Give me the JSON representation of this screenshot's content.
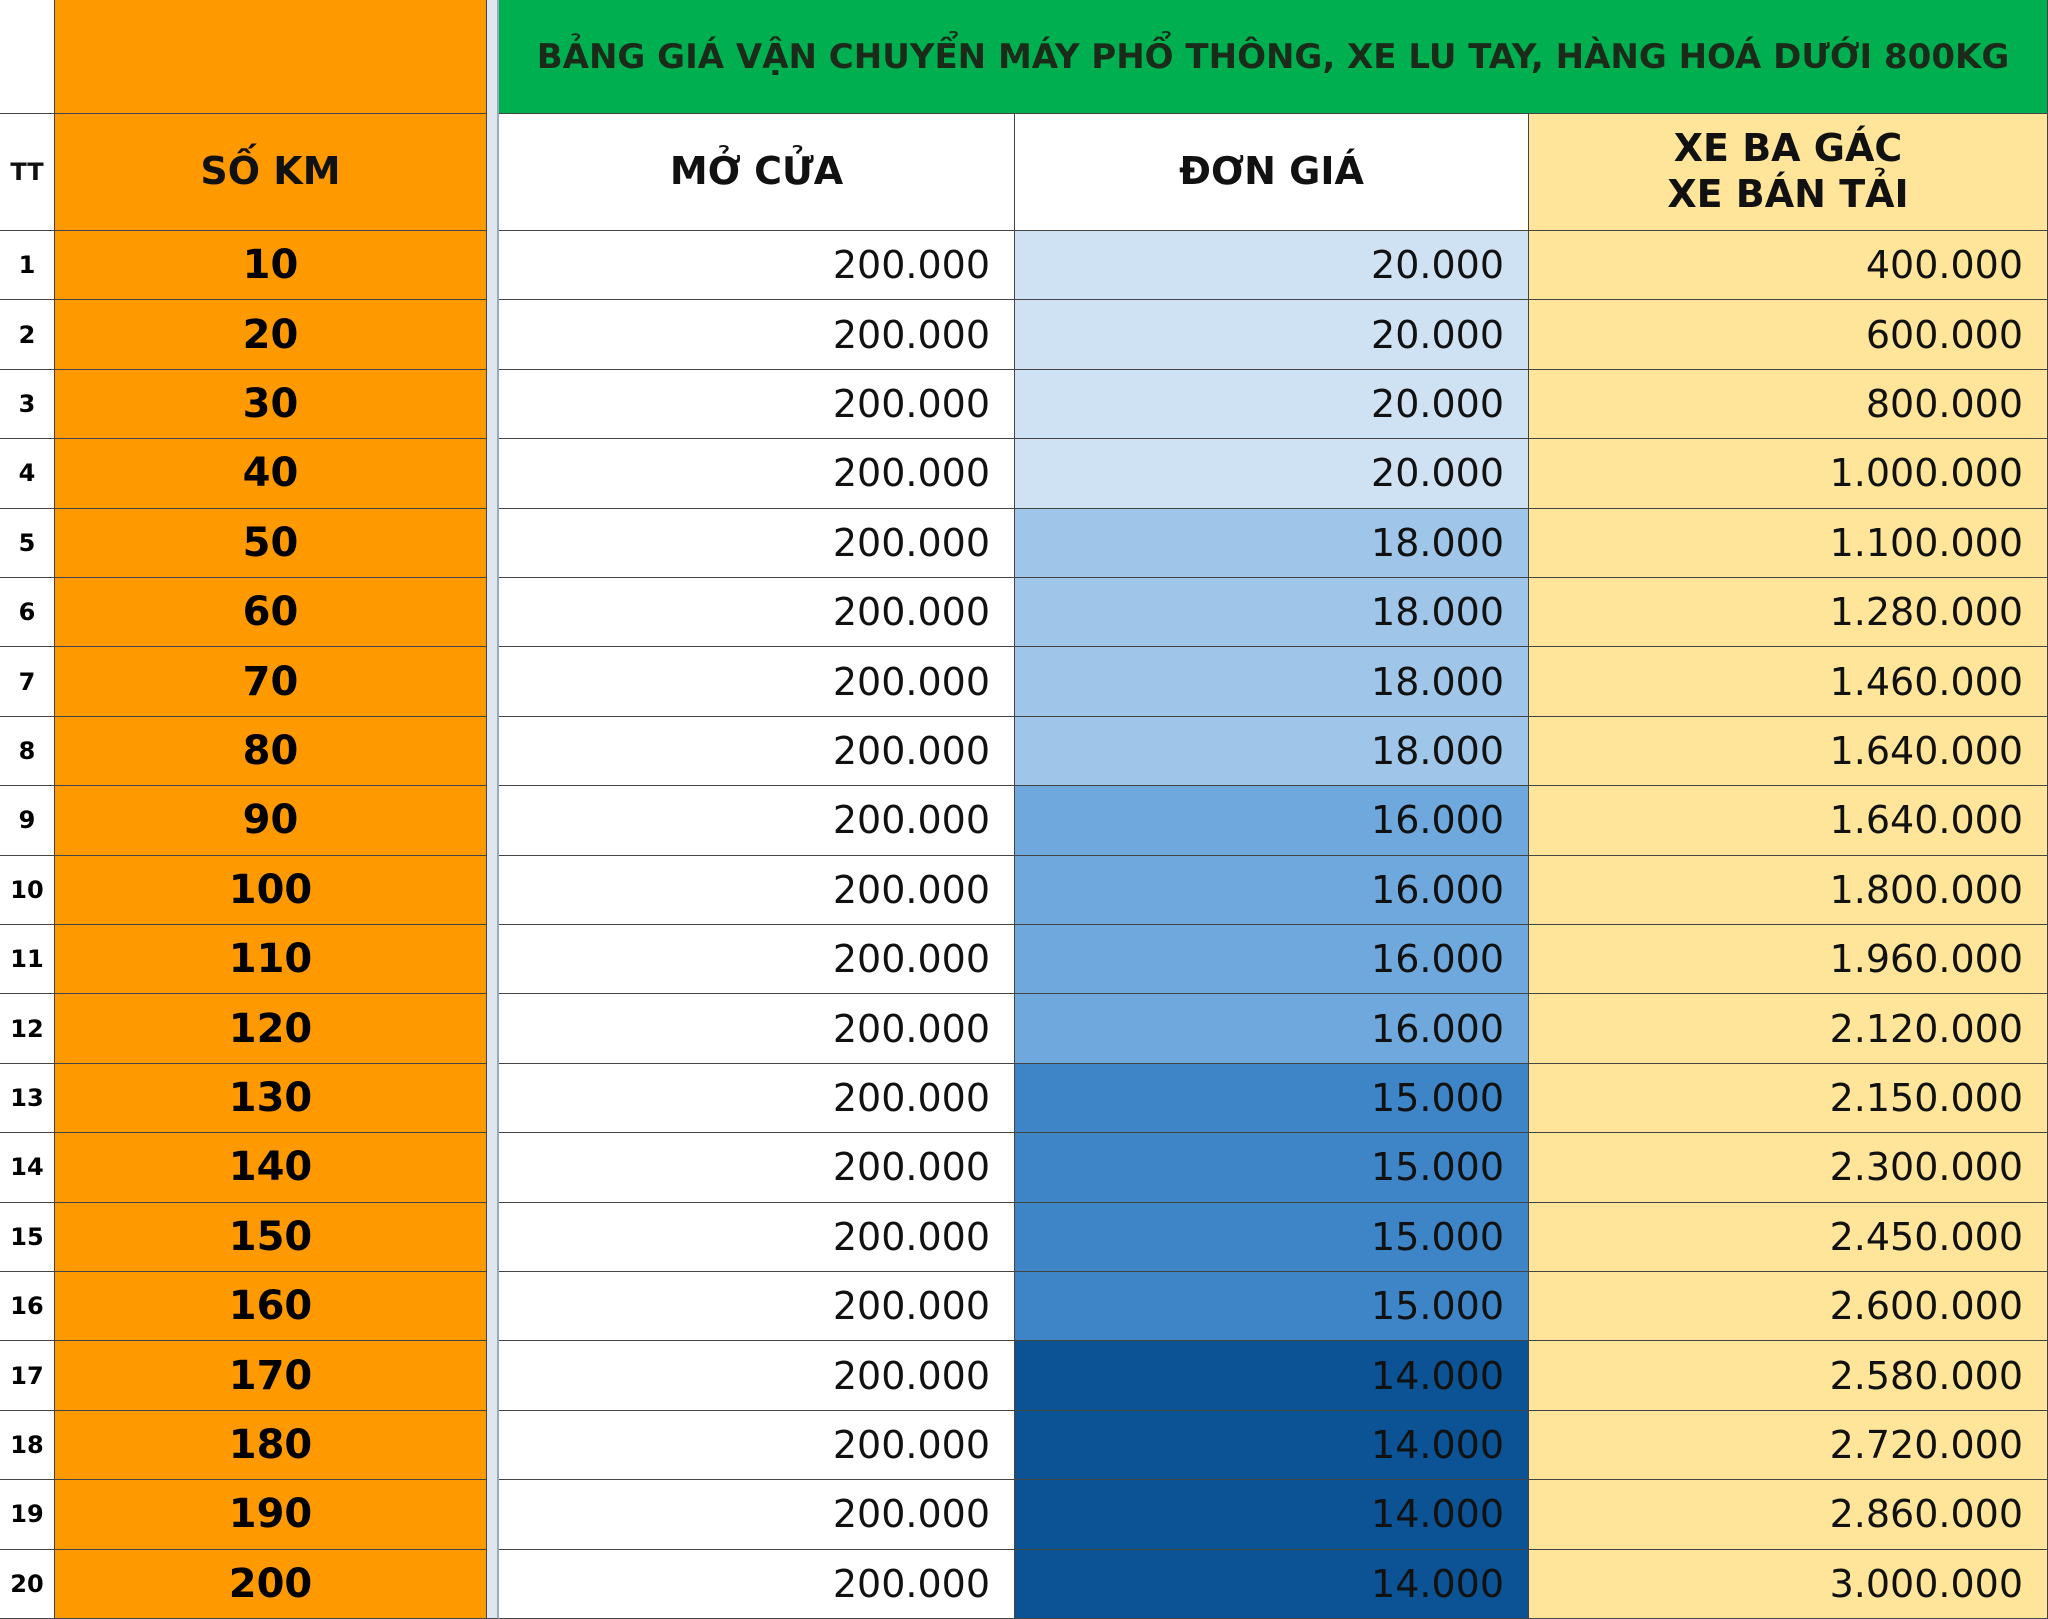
{
  "header": {
    "title": "BẢNG GIÁ VẬN CHUYỂN MÁY PHỔ THÔNG, XE LU TAY, HÀNG HOÁ DƯỚI 800KG",
    "columns": [
      "TT",
      "SỐ KM",
      "MỞ CỬA",
      "ĐƠN GIÁ",
      "XE BA GÁC\nXE BÁN TẢI"
    ]
  },
  "table": {
    "rows": [
      {
        "tt": "1",
        "km": "10",
        "mo_cua": "200.000",
        "don_gia": "20.000",
        "don_gia_color": "#cfe2f3",
        "xe": "400.000"
      },
      {
        "tt": "2",
        "km": "20",
        "mo_cua": "200.000",
        "don_gia": "20.000",
        "don_gia_color": "#cfe2f3",
        "xe": "600.000"
      },
      {
        "tt": "3",
        "km": "30",
        "mo_cua": "200.000",
        "don_gia": "20.000",
        "don_gia_color": "#cfe2f3",
        "xe": "800.000"
      },
      {
        "tt": "4",
        "km": "40",
        "mo_cua": "200.000",
        "don_gia": "20.000",
        "don_gia_color": "#cfe2f3",
        "xe": "1.000.000"
      },
      {
        "tt": "5",
        "km": "50",
        "mo_cua": "200.000",
        "don_gia": "18.000",
        "don_gia_color": "#9fc5e8",
        "xe": "1.100.000"
      },
      {
        "tt": "6",
        "km": "60",
        "mo_cua": "200.000",
        "don_gia": "18.000",
        "don_gia_color": "#9fc5e8",
        "xe": "1.280.000"
      },
      {
        "tt": "7",
        "km": "70",
        "mo_cua": "200.000",
        "don_gia": "18.000",
        "don_gia_color": "#9fc5e8",
        "xe": "1.460.000"
      },
      {
        "tt": "8",
        "km": "80",
        "mo_cua": "200.000",
        "don_gia": "18.000",
        "don_gia_color": "#9fc5e8",
        "xe": "1.640.000"
      },
      {
        "tt": "9",
        "km": "90",
        "mo_cua": "200.000",
        "don_gia": "16.000",
        "don_gia_color": "#6fa8dc",
        "xe": "1.640.000"
      },
      {
        "tt": "10",
        "km": "100",
        "mo_cua": "200.000",
        "don_gia": "16.000",
        "don_gia_color": "#6fa8dc",
        "xe": "1.800.000"
      },
      {
        "tt": "11",
        "km": "110",
        "mo_cua": "200.000",
        "don_gia": "16.000",
        "don_gia_color": "#6fa8dc",
        "xe": "1.960.000"
      },
      {
        "tt": "12",
        "km": "120",
        "mo_cua": "200.000",
        "don_gia": "16.000",
        "don_gia_color": "#6fa8dc",
        "xe": "2.120.000"
      },
      {
        "tt": "13",
        "km": "130",
        "mo_cua": "200.000",
        "don_gia": "15.000",
        "don_gia_color": "#3d85c6",
        "xe": "2.150.000"
      },
      {
        "tt": "14",
        "km": "140",
        "mo_cua": "200.000",
        "don_gia": "15.000",
        "don_gia_color": "#3d85c6",
        "xe": "2.300.000"
      },
      {
        "tt": "15",
        "km": "150",
        "mo_cua": "200.000",
        "don_gia": "15.000",
        "don_gia_color": "#3d85c6",
        "xe": "2.450.000"
      },
      {
        "tt": "16",
        "km": "160",
        "mo_cua": "200.000",
        "don_gia": "15.000",
        "don_gia_color": "#3d85c6",
        "xe": "2.600.000"
      },
      {
        "tt": "17",
        "km": "170",
        "mo_cua": "200.000",
        "don_gia": "14.000",
        "don_gia_color": "#0b5394",
        "xe": "2.580.000"
      },
      {
        "tt": "18",
        "km": "180",
        "mo_cua": "200.000",
        "don_gia": "14.000",
        "don_gia_color": "#0b5394",
        "xe": "2.720.000"
      },
      {
        "tt": "19",
        "km": "190",
        "mo_cua": "200.000",
        "don_gia": "14.000",
        "don_gia_color": "#0b5394",
        "xe": "2.860.000"
      },
      {
        "tt": "20",
        "km": "200",
        "mo_cua": "200.000",
        "don_gia": "14.000",
        "don_gia_color": "#0b5394",
        "xe": "3.000.000"
      }
    ]
  }
}
